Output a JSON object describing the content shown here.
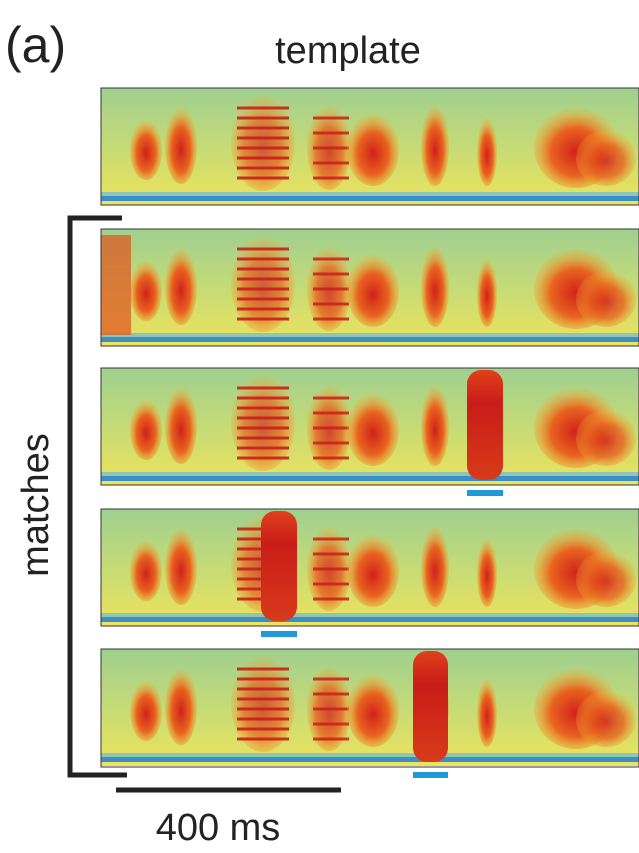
{
  "figure": {
    "label": "(a)",
    "template_title": "template",
    "matches_label": "matches",
    "scale_label": "400 ms"
  }
}
